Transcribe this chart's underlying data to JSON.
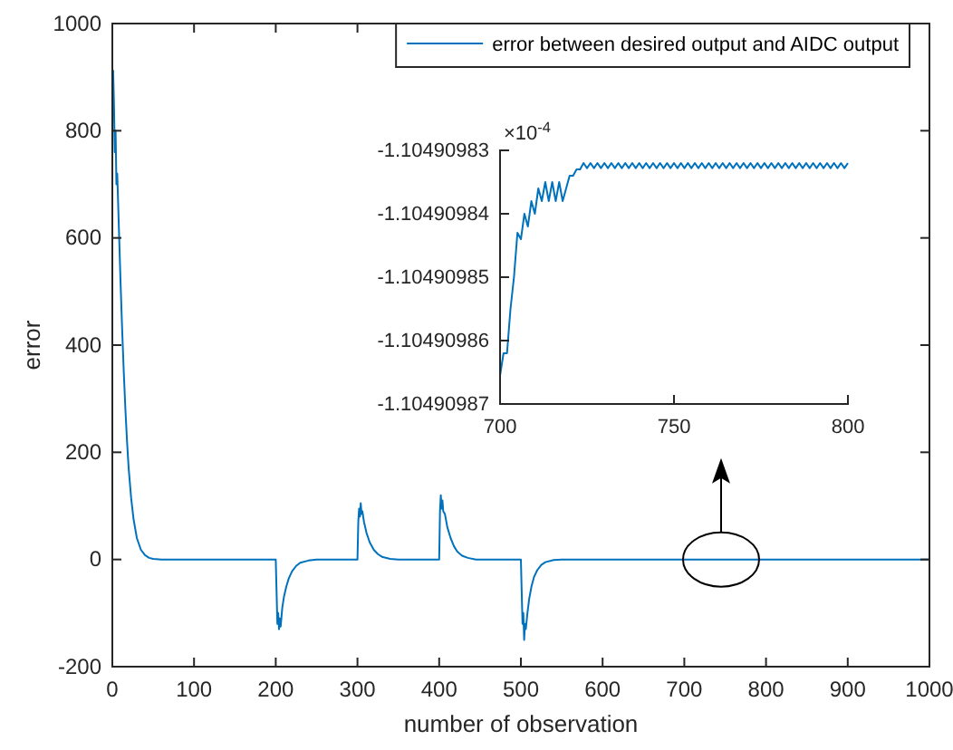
{
  "chart_data": [
    {
      "type": "line",
      "xlabel": "number of observation",
      "ylabel": "error",
      "xlim": [
        0,
        1000
      ],
      "ylim": [
        -200,
        1000
      ],
      "xticks": [
        0,
        100,
        200,
        300,
        400,
        500,
        600,
        700,
        800,
        900,
        1000
      ],
      "yticks": [
        -200,
        0,
        200,
        400,
        600,
        800,
        1000
      ],
      "legend": "top right",
      "grid": false,
      "series": [
        {
          "name": "error between desired output and AIDC output",
          "color": "#0072bd",
          "x": [
            0,
            1,
            2,
            3,
            4,
            5,
            6,
            8,
            10,
            12,
            14,
            16,
            18,
            20,
            23,
            26,
            30,
            35,
            40,
            45,
            50,
            60,
            200,
            201,
            202,
            203,
            204,
            205,
            206,
            208,
            210,
            213,
            216,
            220,
            225,
            230,
            240,
            250,
            300,
            301,
            302,
            303,
            304,
            305,
            306,
            308,
            311,
            315,
            320,
            325,
            330,
            340,
            350,
            400,
            401,
            402,
            403,
            404,
            405,
            407,
            410,
            414,
            418,
            422,
            428,
            435,
            445,
            500,
            501,
            502,
            503,
            504,
            505,
            506,
            508,
            510,
            513,
            516,
            520,
            525,
            530,
            540,
            550,
            1000
          ],
          "values": [
            880,
            912,
            850,
            760,
            800,
            700,
            720,
            620,
            520,
            430,
            350,
            280,
            220,
            170,
            115,
            75,
            40,
            18,
            8,
            3,
            1,
            0,
            0,
            -60,
            -120,
            -100,
            -130,
            -110,
            -125,
            -90,
            -70,
            -50,
            -35,
            -22,
            -12,
            -6,
            -2,
            0,
            0,
            70,
            95,
            80,
            105,
            85,
            90,
            70,
            50,
            32,
            18,
            10,
            5,
            1,
            0,
            0,
            90,
            120,
            95,
            110,
            90,
            85,
            60,
            40,
            25,
            15,
            7,
            3,
            0,
            0,
            -60,
            -120,
            -100,
            -150,
            -120,
            -130,
            -100,
            -75,
            -50,
            -33,
            -20,
            -10,
            -5,
            -1,
            0,
            0
          ]
        }
      ]
    },
    {
      "type": "line",
      "annotations": [
        "×10$^{-4}$"
      ],
      "xlim": [
        700,
        800
      ],
      "ylim": [
        -1.10490987,
        -1.10490983
      ],
      "xticks": [
        700,
        750,
        800
      ],
      "yticks": [
        -1.10490987,
        -1.10490986,
        -1.10490985,
        -1.10490984,
        -1.10490983
      ],
      "grid": false,
      "series": [
        {
          "color": "#0072bd",
          "x": [
            700,
            701,
            702,
            703,
            704,
            705,
            706,
            707,
            708,
            709,
            710,
            711,
            712,
            713,
            714,
            715,
            716,
            717,
            718,
            719,
            720,
            721,
            722,
            723,
            724,
            725,
            726,
            727,
            728,
            729,
            730,
            731,
            732,
            733,
            734,
            735,
            736,
            737,
            738,
            739,
            740,
            741,
            742,
            743,
            744,
            745,
            746,
            747,
            748,
            749,
            750,
            751,
            752,
            753,
            754,
            755,
            756,
            757,
            758,
            759,
            760,
            761,
            762,
            763,
            764,
            765,
            766,
            767,
            768,
            769,
            770,
            771,
            772,
            773,
            774,
            775,
            776,
            777,
            778,
            779,
            780,
            781,
            782,
            783,
            784,
            785,
            786,
            787,
            788,
            789,
            790,
            791,
            792,
            793,
            794,
            795,
            796,
            797,
            798,
            799,
            800
          ],
          "values": [
            -1.1049098655,
            -1.104909862,
            -1.104909862,
            -1.104909855,
            -1.10490985,
            -1.104909843,
            -1.104909844,
            -1.10490984,
            -1.104909842,
            -1.104909838,
            -1.10490984,
            -1.104909836,
            -1.104909838,
            -1.104909835,
            -1.104909838,
            -1.104909835,
            -1.104909838,
            -1.104909835,
            -1.104909838,
            -1.104909836,
            -1.104909834,
            -1.104909834,
            -1.104909833,
            -1.104909833,
            -1.104909832,
            -1.1049098328,
            -1.104909832,
            -1.1049098328,
            -1.104909832,
            -1.1049098328,
            -1.104909832,
            -1.1049098328,
            -1.104909832,
            -1.1049098328,
            -1.104909832,
            -1.1049098328,
            -1.104909832,
            -1.1049098328,
            -1.104909832,
            -1.1049098328,
            -1.104909832,
            -1.1049098328,
            -1.104909832,
            -1.1049098328,
            -1.104909832,
            -1.1049098328,
            -1.104909832,
            -1.1049098328,
            -1.104909832,
            -1.1049098328,
            -1.104909832,
            -1.1049098328,
            -1.104909832,
            -1.1049098328,
            -1.104909832,
            -1.1049098328,
            -1.104909832,
            -1.1049098328,
            -1.104909832,
            -1.1049098328,
            -1.104909832,
            -1.1049098328,
            -1.104909832,
            -1.1049098328,
            -1.104909832,
            -1.1049098328,
            -1.104909832,
            -1.1049098328,
            -1.104909832,
            -1.1049098328,
            -1.104909832,
            -1.1049098328,
            -1.104909832,
            -1.1049098328,
            -1.104909832,
            -1.1049098328,
            -1.104909832,
            -1.1049098328,
            -1.104909832,
            -1.1049098328,
            -1.104909832,
            -1.1049098328,
            -1.104909832,
            -1.1049098328,
            -1.104909832,
            -1.1049098328,
            -1.104909832,
            -1.1049098328,
            -1.104909832,
            -1.1049098328,
            -1.104909832,
            -1.1049098328,
            -1.104909832,
            -1.1049098328,
            -1.104909832,
            -1.1049098328,
            -1.104909832,
            -1.1049098328,
            -1.104909832,
            -1.1049098328,
            -1.104909832
          ]
        }
      ]
    }
  ]
}
